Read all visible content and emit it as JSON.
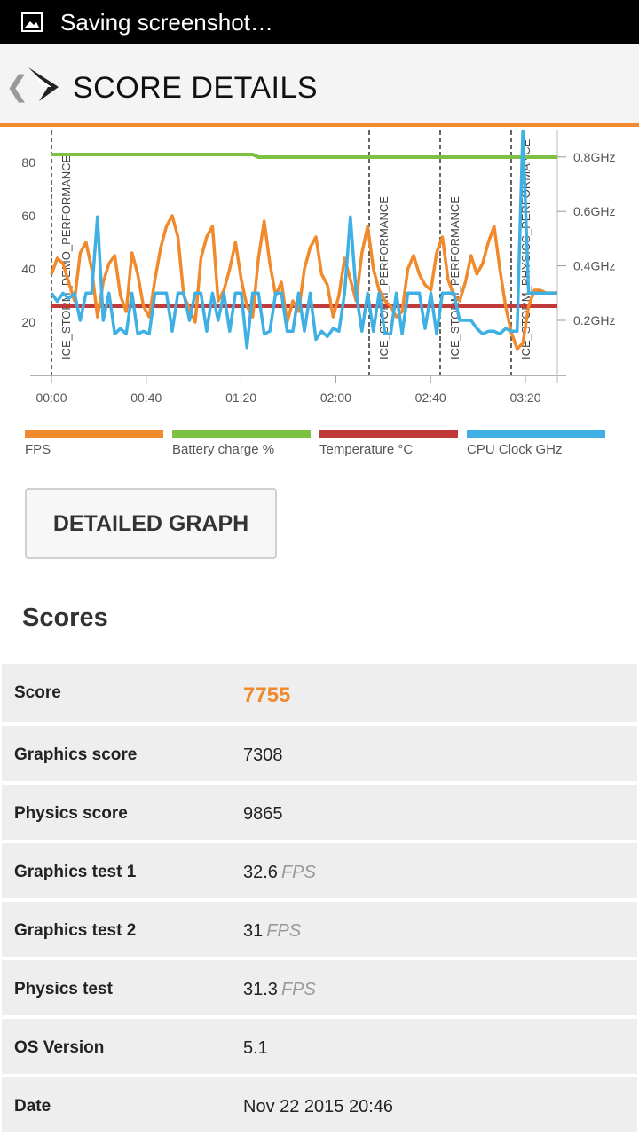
{
  "status_bar": {
    "text": "Saving screenshot…"
  },
  "app_bar": {
    "title": "SCORE DETAILS"
  },
  "chart_data": {
    "type": "line",
    "x_ticks": [
      "00:00",
      "00:40",
      "01:20",
      "02:00",
      "02:40",
      "03:20"
    ],
    "y_left_ticks": [
      "20",
      "40",
      "60",
      "80"
    ],
    "y_right_ticks": [
      "0.2GHz",
      "0.4GHz",
      "0.6GHz",
      "0.8GHz"
    ],
    "markers": [
      "ICE_STORM_DEMO_PERFORMANCE",
      "ICE_STORM_PERFORMANCE",
      "ICE_STORM_PERFORMANCE",
      "ICE_STORM_PHYSICS_PERFORMANCE"
    ],
    "series": [
      {
        "name": "FPS",
        "color": "#f08a2c",
        "values": [
          38,
          44,
          42,
          35,
          28,
          46,
          50,
          40,
          22,
          35,
          42,
          45,
          30,
          24,
          46,
          38,
          26,
          22,
          36,
          48,
          56,
          60,
          52,
          30,
          25,
          20,
          44,
          52,
          56,
          28,
          32,
          40,
          50,
          36,
          26,
          22,
          44,
          58,
          42,
          30,
          35,
          20,
          28,
          24,
          40,
          48,
          52,
          38,
          34,
          22,
          30,
          44,
          36,
          28,
          46,
          56,
          40,
          32,
          28,
          26,
          22,
          24,
          40,
          45,
          38,
          34,
          32,
          46,
          52,
          36,
          30,
          28,
          35,
          45,
          38,
          42,
          50,
          56,
          40,
          26,
          16,
          10,
          12,
          26,
          32,
          32,
          31,
          31,
          31
        ]
      },
      {
        "name": "Battery charge %",
        "color": "#7dc143",
        "values": [
          83,
          83,
          83,
          83,
          83,
          83,
          83,
          83,
          83,
          83,
          83,
          83,
          83,
          83,
          83,
          83,
          83,
          83,
          83,
          83,
          83,
          83,
          83,
          83,
          83,
          83,
          83,
          83,
          83,
          83,
          83,
          83,
          83,
          83,
          83,
          83,
          82,
          82,
          82,
          82,
          82,
          82,
          82,
          82,
          82,
          82,
          82,
          82,
          82,
          82,
          82,
          82,
          82,
          82,
          82,
          82,
          82,
          82,
          82,
          82,
          82,
          82,
          82,
          82,
          82,
          82,
          82,
          82,
          82,
          82,
          82,
          82,
          82,
          82,
          82,
          82,
          82,
          82,
          82,
          82,
          82,
          82,
          82,
          82,
          82,
          82,
          82,
          82,
          82
        ]
      },
      {
        "name": "Temperature °C",
        "color": "#c03a3a",
        "values": [
          26,
          26,
          26,
          26,
          26,
          26,
          26,
          26,
          26,
          26,
          26,
          26,
          26,
          26,
          26,
          26,
          26,
          26,
          26,
          26,
          26,
          26,
          26,
          26,
          26,
          26,
          26,
          26,
          26,
          26,
          26,
          26,
          26,
          26,
          26,
          26,
          26,
          26,
          26,
          26,
          26,
          26,
          26,
          26,
          26,
          26,
          26,
          26,
          26,
          26,
          26,
          26,
          26,
          26,
          26,
          26,
          26,
          26,
          26,
          26,
          26,
          26,
          26,
          26,
          26,
          26,
          26,
          26,
          26,
          26,
          26,
          26,
          26,
          26,
          26,
          26,
          26,
          26,
          26,
          26,
          26,
          26,
          26,
          26,
          26,
          26,
          26,
          26,
          26
        ]
      },
      {
        "name": "CPU Clock GHz",
        "color": "#3fb0e4",
        "values": [
          0.3,
          0.27,
          0.3,
          0.28,
          0.3,
          0.2,
          0.3,
          0.3,
          0.58,
          0.2,
          0.3,
          0.15,
          0.17,
          0.15,
          0.3,
          0.15,
          0.16,
          0.15,
          0.3,
          0.3,
          0.3,
          0.16,
          0.3,
          0.3,
          0.2,
          0.3,
          0.3,
          0.16,
          0.3,
          0.2,
          0.3,
          0.16,
          0.3,
          0.3,
          0.1,
          0.3,
          0.3,
          0.15,
          0.16,
          0.3,
          0.3,
          0.16,
          0.16,
          0.3,
          0.16,
          0.3,
          0.13,
          0.16,
          0.14,
          0.17,
          0.16,
          0.3,
          0.58,
          0.3,
          0.16,
          0.3,
          0.16,
          0.3,
          0.15,
          0.15,
          0.3,
          0.15,
          0.3,
          0.3,
          0.3,
          0.17,
          0.3,
          0.15,
          0.3,
          0.3,
          0.3,
          0.2,
          0.2,
          0.2,
          0.17,
          0.15,
          0.16,
          0.16,
          0.15,
          0.17,
          0.16,
          0.16,
          0.9,
          0.3,
          0.3,
          0.3,
          0.3,
          0.3,
          0.3
        ]
      }
    ]
  },
  "detailed_graph_button": "DETAILED GRAPH",
  "scores": {
    "title": "Scores",
    "rows": [
      {
        "label": "Score",
        "value": "7755",
        "unit": ""
      },
      {
        "label": "Graphics score",
        "value": "7308",
        "unit": ""
      },
      {
        "label": "Physics score",
        "value": "9865",
        "unit": ""
      },
      {
        "label": "Graphics test 1",
        "value": "32.6",
        "unit": "FPS"
      },
      {
        "label": "Graphics test 2",
        "value": "31",
        "unit": "FPS"
      },
      {
        "label": "Physics test",
        "value": "31.3",
        "unit": "FPS"
      },
      {
        "label": "OS Version",
        "value": "5.1",
        "unit": ""
      },
      {
        "label": "Date",
        "value": "Nov 22 2015 20:46",
        "unit": ""
      }
    ]
  }
}
